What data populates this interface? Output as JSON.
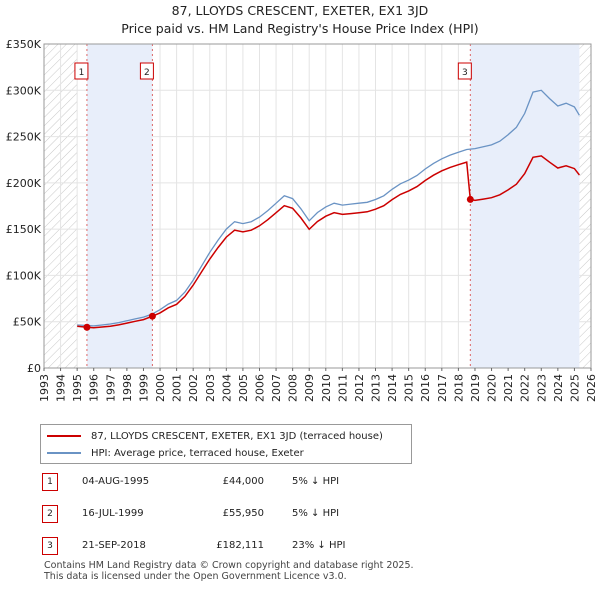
{
  "chart_data": {
    "type": "line",
    "title": "87, LLOYDS CRESCENT, EXETER, EX1 3JD",
    "subtitle": "Price paid vs. HM Land Registry's House Price Index (HPI)",
    "xlabel": "",
    "ylabel": "",
    "xlim": [
      1993,
      2026
    ],
    "ylim": [
      0,
      350000
    ],
    "x_ticks": [
      "1993",
      "1994",
      "1995",
      "1996",
      "1997",
      "1998",
      "1999",
      "2000",
      "2001",
      "2002",
      "2003",
      "2004",
      "2005",
      "2006",
      "2007",
      "2008",
      "2009",
      "2010",
      "2011",
      "2012",
      "2013",
      "2014",
      "2015",
      "2016",
      "2017",
      "2018",
      "2019",
      "2020",
      "2021",
      "2022",
      "2023",
      "2024",
      "2025",
      "2026"
    ],
    "y_ticks": [
      {
        "value": 0,
        "label": "£0"
      },
      {
        "value": 50000,
        "label": "£50K"
      },
      {
        "value": 100000,
        "label": "£100K"
      },
      {
        "value": 150000,
        "label": "£150K"
      },
      {
        "value": 200000,
        "label": "£200K"
      },
      {
        "value": 250000,
        "label": "£250K"
      },
      {
        "value": 300000,
        "label": "£300K"
      },
      {
        "value": 350000,
        "label": "£350K"
      }
    ],
    "hatched_before": 1995.0,
    "hatched_after": 2025.3,
    "grid": true,
    "series": [
      {
        "name": "HPI: Average price, terraced house, Exeter",
        "color": "#6a93c4",
        "points": [
          [
            1995.0,
            46500
          ],
          [
            1995.5,
            46000
          ],
          [
            1996.0,
            45500
          ],
          [
            1996.5,
            46500
          ],
          [
            1997.0,
            47500
          ],
          [
            1997.5,
            49000
          ],
          [
            1998.0,
            51000
          ],
          [
            1998.5,
            53000
          ],
          [
            1999.0,
            55000
          ],
          [
            1999.5,
            58000
          ],
          [
            2000.0,
            63000
          ],
          [
            2000.5,
            69000
          ],
          [
            2001.0,
            73000
          ],
          [
            2001.5,
            82000
          ],
          [
            2002.0,
            95000
          ],
          [
            2002.5,
            110000
          ],
          [
            2003.0,
            125000
          ],
          [
            2003.5,
            138000
          ],
          [
            2004.0,
            150000
          ],
          [
            2004.5,
            158000
          ],
          [
            2005.0,
            156000
          ],
          [
            2005.5,
            158000
          ],
          [
            2006.0,
            163000
          ],
          [
            2006.5,
            170000
          ],
          [
            2007.0,
            178000
          ],
          [
            2007.5,
            186000
          ],
          [
            2008.0,
            183000
          ],
          [
            2008.5,
            172000
          ],
          [
            2009.0,
            159000
          ],
          [
            2009.5,
            168000
          ],
          [
            2010.0,
            174000
          ],
          [
            2010.5,
            178000
          ],
          [
            2011.0,
            176000
          ],
          [
            2011.5,
            177000
          ],
          [
            2012.0,
            178000
          ],
          [
            2012.5,
            179000
          ],
          [
            2013.0,
            182000
          ],
          [
            2013.5,
            186000
          ],
          [
            2014.0,
            193000
          ],
          [
            2014.5,
            199000
          ],
          [
            2015.0,
            203000
          ],
          [
            2015.5,
            208000
          ],
          [
            2016.0,
            215000
          ],
          [
            2016.5,
            221000
          ],
          [
            2017.0,
            226000
          ],
          [
            2017.5,
            230000
          ],
          [
            2018.0,
            233000
          ],
          [
            2018.5,
            236000
          ],
          [
            2019.0,
            237000
          ],
          [
            2019.5,
            239000
          ],
          [
            2020.0,
            241000
          ],
          [
            2020.5,
            245000
          ],
          [
            2021.0,
            252000
          ],
          [
            2021.5,
            260000
          ],
          [
            2022.0,
            275000
          ],
          [
            2022.5,
            298000
          ],
          [
            2023.0,
            300000
          ],
          [
            2023.5,
            291000
          ],
          [
            2024.0,
            283000
          ],
          [
            2024.5,
            286000
          ],
          [
            2025.0,
            282000
          ],
          [
            2025.3,
            273000
          ]
        ]
      },
      {
        "name": "87, LLOYDS CRESCENT, EXETER, EX1 3JD (terraced house)",
        "color": "#cc0000",
        "points": [
          [
            1995.0,
            45000
          ],
          [
            1995.59,
            44000
          ],
          [
            1996.0,
            43500
          ],
          [
            1996.5,
            44300
          ],
          [
            1997.0,
            45200
          ],
          [
            1997.5,
            46600
          ],
          [
            1998.0,
            48500
          ],
          [
            1998.5,
            50400
          ],
          [
            1999.0,
            52300
          ],
          [
            1999.54,
            55950
          ],
          [
            2000.0,
            59500
          ],
          [
            2000.5,
            65000
          ],
          [
            2001.0,
            68800
          ],
          [
            2001.5,
            77300
          ],
          [
            2002.0,
            89500
          ],
          [
            2002.5,
            103700
          ],
          [
            2003.0,
            117800
          ],
          [
            2003.5,
            130100
          ],
          [
            2004.0,
            141400
          ],
          [
            2004.5,
            148900
          ],
          [
            2005.0,
            147000
          ],
          [
            2005.5,
            148900
          ],
          [
            2006.0,
            153600
          ],
          [
            2006.5,
            160200
          ],
          [
            2007.0,
            167800
          ],
          [
            2007.5,
            175300
          ],
          [
            2008.0,
            172500
          ],
          [
            2008.5,
            162100
          ],
          [
            2009.0,
            149800
          ],
          [
            2009.5,
            158300
          ],
          [
            2010.0,
            164000
          ],
          [
            2010.5,
            167800
          ],
          [
            2011.0,
            165900
          ],
          [
            2011.5,
            166800
          ],
          [
            2012.0,
            167800
          ],
          [
            2012.5,
            168700
          ],
          [
            2013.0,
            171500
          ],
          [
            2013.5,
            175300
          ],
          [
            2014.0,
            181900
          ],
          [
            2014.5,
            187500
          ],
          [
            2015.0,
            191300
          ],
          [
            2015.5,
            196000
          ],
          [
            2016.0,
            202600
          ],
          [
            2016.5,
            208300
          ],
          [
            2017.0,
            213000
          ],
          [
            2017.5,
            216700
          ],
          [
            2018.0,
            219600
          ],
          [
            2018.5,
            222400
          ],
          [
            2018.72,
            182111
          ],
          [
            2019.0,
            181000
          ],
          [
            2019.5,
            182500
          ],
          [
            2020.0,
            184000
          ],
          [
            2020.5,
            187100
          ],
          [
            2021.0,
            192400
          ],
          [
            2021.5,
            198600
          ],
          [
            2022.0,
            210000
          ],
          [
            2022.5,
            227600
          ],
          [
            2023.0,
            229100
          ],
          [
            2023.5,
            222300
          ],
          [
            2024.0,
            216100
          ],
          [
            2024.5,
            218400
          ],
          [
            2025.0,
            215400
          ],
          [
            2025.3,
            208500
          ]
        ]
      }
    ],
    "sales": [
      {
        "label": "1",
        "x": 1995.59,
        "price": 44000
      },
      {
        "label": "2",
        "x": 1999.54,
        "price": 55950
      },
      {
        "label": "3",
        "x": 2018.72,
        "price": 182111
      }
    ]
  },
  "legend": {
    "property_label": "87, LLOYDS CRESCENT, EXETER, EX1 3JD (terraced house)",
    "hpi_label": "HPI: Average price, terraced house, Exeter"
  },
  "transactions": [
    {
      "num": "1",
      "date": "04-AUG-1995",
      "price": "£44,000",
      "hpi": "5% ↓ HPI"
    },
    {
      "num": "2",
      "date": "16-JUL-1999",
      "price": "£55,950",
      "hpi": "5% ↓ HPI"
    },
    {
      "num": "3",
      "date": "21-SEP-2018",
      "price": "£182,111",
      "hpi": "23% ↓ HPI"
    }
  ],
  "footer": {
    "line1": "Contains HM Land Registry data © Crown copyright and database right 2025.",
    "line2": "This data is licensed under the Open Government Licence v3.0."
  }
}
